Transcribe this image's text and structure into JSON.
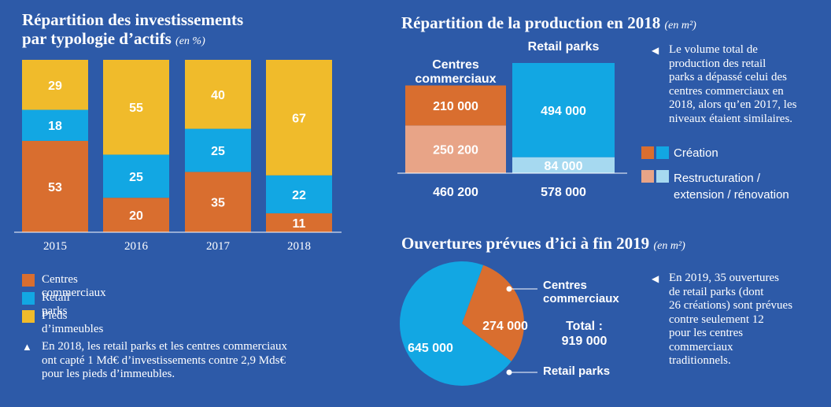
{
  "colors": {
    "background": "#2d5aa8",
    "orange": "#d96e2f",
    "blue": "#12a7e3",
    "yellow": "#f0bb2b",
    "light_orange": "#e8a487",
    "light_blue": "#a6d9f0"
  },
  "left": {
    "title_line1": "Répartition des investissements",
    "title_line2": "par typologie d’actifs",
    "title_unit": "(en %)",
    "legend": [
      {
        "label": "Centres commerciaux",
        "color": "#d96e2f"
      },
      {
        "label": "Retail parks",
        "color": "#12a7e3"
      },
      {
        "label": "Pieds d’immeubles",
        "color": "#f0bb2b"
      }
    ],
    "note_marker": "▲",
    "note_lines": [
      "En 2018, les retail parks et les centres commerciaux",
      "ont capté 1 Md€ d’investissements contre 2,9 Mds€",
      "pour les pieds d’immeubles."
    ]
  },
  "top_right": {
    "title": "Répartition de la production  en 2018",
    "title_unit": "(en m²)",
    "col1_label_line1": "Centres",
    "col1_label_line2": "commerciaux",
    "col2_label": "Retail parks",
    "legend": [
      {
        "label_lines": [
          "Création"
        ],
        "colors": [
          "#d96e2f",
          "#12a7e3"
        ]
      },
      {
        "label_lines": [
          "Restructuration /",
          "extension / rénovation"
        ],
        "colors": [
          "#e8a487",
          "#a6d9f0"
        ]
      }
    ],
    "note_marker": "◀",
    "note_lines": [
      "Le volume total de",
      "production des retail",
      "parks a dépassé celui des",
      "centres commerciaux en",
      "2018, alors qu’en 2017, les",
      "niveaux étaient similaires."
    ]
  },
  "bottom_right": {
    "title": "Ouvertures prévues d’ici à fin 2019",
    "title_unit": "(en m²)",
    "label_cc_line1": "Centres",
    "label_cc_line2": "commerciaux",
    "label_rp": "Retail parks",
    "total_label": "Total :",
    "total_value": "919 000",
    "note_marker": "◀",
    "note_lines": [
      "En 2019, 35 ouvertures",
      "de retail parks (dont",
      "26 créations) sont prévues",
      "contre seulement 12",
      "pour les centres",
      "commerciaux",
      "traditionnels."
    ]
  },
  "chart_data": [
    {
      "type": "bar",
      "stacked": true,
      "title": "Répartition des investissements par typologie d’actifs (en %)",
      "categories": [
        "2015",
        "2016",
        "2017",
        "2018"
      ],
      "series": [
        {
          "name": "Centres commerciaux",
          "color": "#d96e2f",
          "values": [
            53,
            20,
            35,
            11
          ]
        },
        {
          "name": "Retail parks",
          "color": "#12a7e3",
          "values": [
            18,
            25,
            25,
            22
          ]
        },
        {
          "name": "Pieds d’immeubles",
          "color": "#f0bb2b",
          "values": [
            29,
            55,
            40,
            67
          ]
        }
      ],
      "ylim": [
        0,
        100
      ]
    },
    {
      "type": "bar",
      "stacked": true,
      "title": "Répartition de la production  en 2018 (en m²)",
      "categories": [
        "Centres commerciaux",
        "Retail parks"
      ],
      "series": [
        {
          "name": "Restructuration / extension / rénovation",
          "values": [
            250200,
            84000
          ],
          "labels": [
            "250 200",
            "84 000"
          ],
          "colors": [
            "#e8a487",
            "#a6d9f0"
          ]
        },
        {
          "name": "Création",
          "values": [
            210000,
            494000
          ],
          "labels": [
            "210 000",
            "494 000"
          ],
          "colors": [
            "#d96e2f",
            "#12a7e3"
          ]
        }
      ],
      "totals": [
        "460 200",
        "578 000"
      ]
    },
    {
      "type": "pie",
      "title": "Ouvertures prévues d’ici à fin 2019 (en m²)",
      "slices": [
        {
          "name": "Centres commerciaux",
          "value": 274000,
          "label": "274 000",
          "color": "#d96e2f"
        },
        {
          "name": "Retail parks",
          "value": 645000,
          "label": "645 000",
          "color": "#12a7e3"
        }
      ],
      "total": "919 000"
    }
  ]
}
